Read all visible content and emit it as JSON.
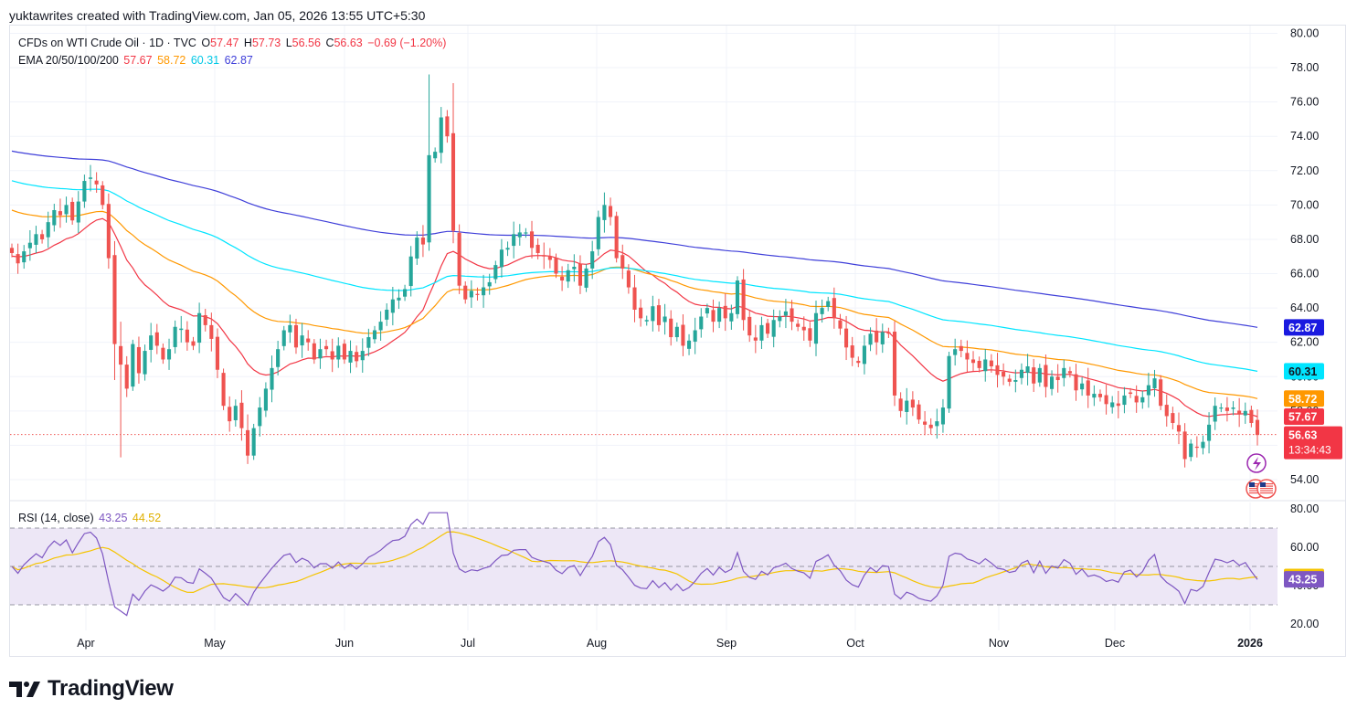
{
  "header": {
    "attribution": "yuktawrites created with TradingView.com, Jan 05, 2026 13:55 UTC+5:30"
  },
  "legend": {
    "symbol": "CFDs on WTI Crude Oil · 1D · TVC",
    "open_label": "O",
    "open": "57.47",
    "high_label": "H",
    "high": "57.73",
    "low_label": "L",
    "low": "56.56",
    "close_label": "C",
    "close": "56.63",
    "change": "−0.69 (−1.20%)",
    "ema_label": "EMA 20/50/100/200",
    "ema20": "57.67",
    "ema50": "58.72",
    "ema100": "60.31",
    "ema200": "62.87"
  },
  "rsi_legend": {
    "label": "RSI (14, close)",
    "rsi": "43.25",
    "rsi_ma": "44.52"
  },
  "countdown": "13:34:43",
  "brand": "TradingView",
  "colors": {
    "up": "#26a69a",
    "down": "#ef5350",
    "ema20": "#f23645",
    "ema50": "#ff9800",
    "ema100": "#00e5ff",
    "ema200": "#3f3fd9",
    "rsi": "#7e57c2",
    "rsi_ma": "#f5c400",
    "rsi_band": "#ede7f6",
    "change": "#f23645"
  },
  "chart_data": [
    {
      "type": "candlestick",
      "title": "CFDs on WTI Crude Oil · 1D · TVC",
      "x_ticks": [
        "Apr",
        "May",
        "Jun",
        "Jul",
        "Aug",
        "Sep",
        "Oct",
        "Nov",
        "Dec",
        "2026"
      ],
      "y_ticks": [
        "54.00",
        "56.00",
        "58.00",
        "60.00",
        "62.00",
        "64.00",
        "66.00",
        "68.00",
        "70.00",
        "72.00",
        "74.00",
        "76.00",
        "78.00",
        "80.00"
      ],
      "ylim": [
        53,
        80.5
      ],
      "grid": true,
      "approx_close": [
        67.2,
        66.6,
        67.3,
        67.8,
        68.3,
        68.0,
        69.0,
        69.7,
        69.4,
        70.0,
        69.1,
        70.2,
        71.4,
        71.6,
        71.2,
        70.0,
        66.9,
        61.9,
        60.7,
        59.3,
        61.9,
        60.2,
        61.5,
        62.4,
        61.8,
        61.0,
        61.6,
        62.9,
        62.8,
        62.0,
        61.8,
        63.7,
        63.0,
        62.2,
        60.4,
        58.3,
        57.4,
        58.3,
        57.0,
        55.4,
        57.0,
        58.2,
        59.3,
        60.5,
        61.6,
        62.7,
        63.0,
        61.7,
        62.4,
        62.0,
        61.0,
        61.6,
        61.6,
        61.0,
        61.8,
        61.0,
        61.5,
        60.9,
        61.5,
        62.3,
        62.7,
        63.2,
        63.9,
        64.5,
        64.6,
        65.1,
        67.0,
        68.1,
        67.7,
        72.9,
        73.1,
        75.1,
        74.0,
        68.5,
        65.3,
        64.5,
        65.0,
        64.8,
        65.2,
        65.5,
        66.5,
        67.4,
        67.5,
        68.3,
        68.4,
        68.4,
        67.5,
        67.2,
        67.0,
        66.8,
        66.0,
        65.6,
        66.2,
        66.4,
        65.3,
        66.3,
        67.3,
        69.3,
        70.0,
        69.3,
        66.9,
        66.3,
        65.2,
        63.9,
        63.4,
        63.3,
        64.1,
        63.0,
        63.5,
        62.3,
        62.9,
        61.8,
        62.1,
        62.7,
        63.5,
        64.0,
        63.2,
        64.0,
        63.4,
        63.7,
        65.6,
        63.3,
        62.4,
        62.1,
        63.0,
        62.5,
        63.3,
        63.5,
        63.8,
        63.2,
        62.9,
        62.7,
        62.1,
        63.7,
        64.0,
        64.4,
        63.4,
        62.8,
        61.7,
        61.1,
        60.8,
        61.8,
        62.5,
        62.0,
        62.6,
        62.5,
        58.9,
        58.0,
        58.6,
        58.2,
        57.5,
        57.2,
        57.0,
        57.4,
        58.2,
        61.2,
        61.6,
        61.5,
        61.0,
        60.8,
        60.5,
        61.0,
        60.6,
        60.1,
        60.0,
        59.7,
        59.8,
        60.4,
        60.6,
        59.6,
        60.5,
        59.4,
        60.0,
        59.8,
        60.5,
        60.2,
        59.2,
        59.6,
        58.9,
        59.0,
        58.8,
        58.4,
        58.5,
        58.3,
        58.9,
        59.0,
        58.5,
        58.8,
        59.5,
        59.9,
        58.3,
        57.7,
        57.3,
        56.8,
        55.2,
        56.1,
        55.9,
        56.2,
        57.2,
        58.3,
        58.2,
        58.0,
        58.2,
        57.8,
        58.0,
        57.3,
        56.6
      ],
      "ema": [
        {
          "name": "EMA 20",
          "last": 57.67
        },
        {
          "name": "EMA 50",
          "last": 58.72
        },
        {
          "name": "EMA 100",
          "last": 60.31
        },
        {
          "name": "EMA 200",
          "last": 62.87
        }
      ],
      "last_price": 56.63
    },
    {
      "type": "line",
      "title": "RSI (14, close)",
      "y_ticks": [
        "20.00",
        "40.00",
        "60.00",
        "80.00"
      ],
      "ylim": [
        20,
        80
      ],
      "bands": [
        30,
        50,
        70
      ],
      "series": [
        {
          "name": "RSI",
          "last": 43.25
        },
        {
          "name": "RSI MA",
          "last": 44.52
        }
      ]
    }
  ]
}
